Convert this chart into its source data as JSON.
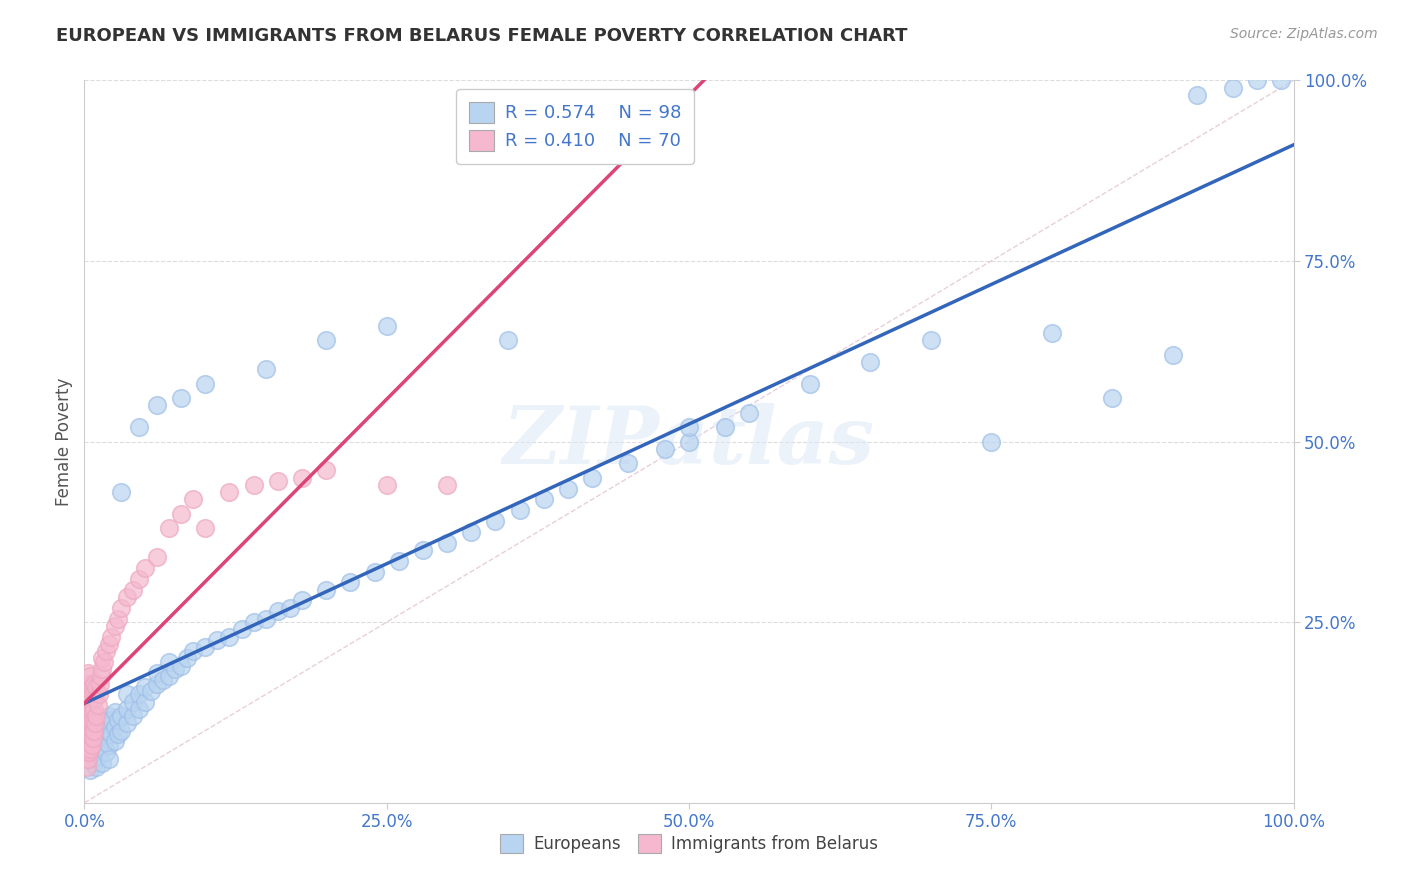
{
  "title": "EUROPEAN VS IMMIGRANTS FROM BELARUS FEMALE POVERTY CORRELATION CHART",
  "source": "Source: ZipAtlas.com",
  "ylabel": "Female Poverty",
  "xlim": [
    0,
    1
  ],
  "ylim": [
    0,
    1
  ],
  "xtick_labels": [
    "0.0%",
    "25.0%",
    "50.0%",
    "75.0%",
    "100.0%"
  ],
  "ytick_labels": [
    "25.0%",
    "50.0%",
    "75.0%",
    "100.0%"
  ],
  "r_european": 0.574,
  "n_european": 98,
  "r_belarus": 0.41,
  "n_belarus": 70,
  "european_color_fill": "#b8d4f0",
  "european_color_edge": "#a0bfe8",
  "belarus_color_fill": "#f5b8ce",
  "belarus_color_edge": "#eda8c0",
  "european_line_color": "#3366bb",
  "belarus_line_color": "#dd4477",
  "diagonal_color": "#ddbbcc",
  "background_color": "#ffffff",
  "watermark": "ZIPatlas",
  "legend_color": "#4477cc",
  "title_color": "#333333",
  "source_color": "#999999",
  "ylabel_color": "#555555",
  "tick_color": "#4477cc",
  "grid_color": "#dddddd",
  "eu_x": [
    0.005,
    0.005,
    0.008,
    0.008,
    0.008,
    0.01,
    0.01,
    0.01,
    0.01,
    0.012,
    0.012,
    0.012,
    0.015,
    0.015,
    0.015,
    0.015,
    0.018,
    0.018,
    0.018,
    0.02,
    0.02,
    0.02,
    0.02,
    0.022,
    0.022,
    0.025,
    0.025,
    0.025,
    0.028,
    0.028,
    0.03,
    0.03,
    0.035,
    0.035,
    0.035,
    0.04,
    0.04,
    0.045,
    0.045,
    0.05,
    0.05,
    0.055,
    0.06,
    0.06,
    0.065,
    0.07,
    0.07,
    0.075,
    0.08,
    0.085,
    0.09,
    0.1,
    0.11,
    0.12,
    0.13,
    0.14,
    0.15,
    0.16,
    0.17,
    0.18,
    0.2,
    0.22,
    0.24,
    0.26,
    0.28,
    0.3,
    0.32,
    0.34,
    0.36,
    0.38,
    0.4,
    0.42,
    0.45,
    0.48,
    0.5,
    0.53,
    0.55,
    0.6,
    0.65,
    0.7,
    0.75,
    0.8,
    0.85,
    0.9,
    0.92,
    0.95,
    0.97,
    0.99,
    0.03,
    0.045,
    0.06,
    0.08,
    0.1,
    0.15,
    0.2,
    0.25,
    0.35,
    0.5
  ],
  "eu_y": [
    0.06,
    0.045,
    0.08,
    0.055,
    0.1,
    0.07,
    0.05,
    0.09,
    0.11,
    0.065,
    0.085,
    0.105,
    0.075,
    0.095,
    0.115,
    0.055,
    0.09,
    0.11,
    0.07,
    0.08,
    0.1,
    0.12,
    0.06,
    0.095,
    0.115,
    0.085,
    0.105,
    0.125,
    0.095,
    0.115,
    0.1,
    0.12,
    0.11,
    0.13,
    0.15,
    0.12,
    0.14,
    0.13,
    0.15,
    0.14,
    0.16,
    0.155,
    0.165,
    0.18,
    0.17,
    0.175,
    0.195,
    0.185,
    0.19,
    0.2,
    0.21,
    0.215,
    0.225,
    0.23,
    0.24,
    0.25,
    0.255,
    0.265,
    0.27,
    0.28,
    0.295,
    0.305,
    0.32,
    0.335,
    0.35,
    0.36,
    0.375,
    0.39,
    0.405,
    0.42,
    0.435,
    0.45,
    0.47,
    0.49,
    0.5,
    0.52,
    0.54,
    0.58,
    0.61,
    0.64,
    0.5,
    0.65,
    0.56,
    0.62,
    0.98,
    0.99,
    1.0,
    1.0,
    0.43,
    0.52,
    0.55,
    0.56,
    0.58,
    0.6,
    0.64,
    0.66,
    0.64,
    0.52
  ],
  "be_x": [
    0.001,
    0.001,
    0.001,
    0.001,
    0.001,
    0.002,
    0.002,
    0.002,
    0.002,
    0.002,
    0.002,
    0.003,
    0.003,
    0.003,
    0.003,
    0.003,
    0.003,
    0.004,
    0.004,
    0.004,
    0.004,
    0.004,
    0.005,
    0.005,
    0.005,
    0.005,
    0.005,
    0.006,
    0.006,
    0.006,
    0.006,
    0.007,
    0.007,
    0.007,
    0.008,
    0.008,
    0.008,
    0.009,
    0.009,
    0.01,
    0.01,
    0.011,
    0.012,
    0.013,
    0.014,
    0.015,
    0.015,
    0.016,
    0.018,
    0.02,
    0.022,
    0.025,
    0.028,
    0.03,
    0.035,
    0.04,
    0.045,
    0.05,
    0.06,
    0.07,
    0.08,
    0.09,
    0.1,
    0.12,
    0.14,
    0.16,
    0.18,
    0.2,
    0.25,
    0.3
  ],
  "be_y": [
    0.06,
    0.08,
    0.1,
    0.12,
    0.14,
    0.05,
    0.07,
    0.09,
    0.11,
    0.13,
    0.16,
    0.06,
    0.08,
    0.1,
    0.12,
    0.15,
    0.18,
    0.07,
    0.09,
    0.11,
    0.135,
    0.165,
    0.075,
    0.095,
    0.115,
    0.145,
    0.175,
    0.08,
    0.1,
    0.125,
    0.16,
    0.09,
    0.115,
    0.15,
    0.1,
    0.13,
    0.165,
    0.11,
    0.145,
    0.12,
    0.16,
    0.135,
    0.15,
    0.165,
    0.175,
    0.185,
    0.2,
    0.195,
    0.21,
    0.22,
    0.23,
    0.245,
    0.255,
    0.27,
    0.285,
    0.295,
    0.31,
    0.325,
    0.34,
    0.38,
    0.4,
    0.42,
    0.38,
    0.43,
    0.44,
    0.445,
    0.45,
    0.46,
    0.44,
    0.44
  ]
}
